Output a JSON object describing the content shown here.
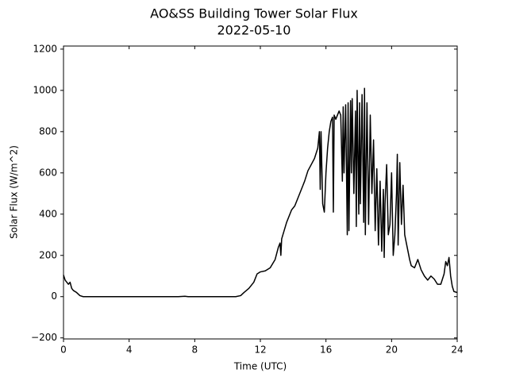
{
  "chart_data": {
    "type": "line",
    "title": "AO&SS Building Tower Solar Flux",
    "subtitle": "2022-05-10",
    "x_label": "Time (UTC)",
    "y_label": "Solar Flux (W/m^2)",
    "xlim": [
      0,
      24
    ],
    "ylim": [
      -205,
      1215
    ],
    "xticks": [
      0,
      4,
      8,
      12,
      16,
      20,
      24
    ],
    "yticks": [
      {
        "value": -200,
        "label": "−200"
      },
      0,
      200,
      400,
      600,
      800,
      1000,
      1200
    ],
    "grid": false,
    "series": [
      {
        "name": "Solar Flux",
        "color": "#000000",
        "x": [
          0,
          0.1,
          0.2,
          0.3,
          0.4,
          0.5,
          0.6,
          0.8,
          1.0,
          1.2,
          1.5,
          3,
          5,
          7,
          7.4,
          7.6,
          9,
          10.5,
          10.8,
          11.0,
          11.3,
          11.6,
          11.8,
          12.0,
          12.3,
          12.6,
          12.9,
          13.1,
          13.2,
          13.25,
          13.3,
          13.6,
          13.9,
          14.1,
          14.3,
          14.5,
          14.7,
          14.9,
          15.1,
          15.3,
          15.5,
          15.6,
          15.65,
          15.7,
          15.8,
          15.9,
          16.0,
          16.1,
          16.2,
          16.3,
          16.4,
          16.45,
          16.5,
          16.6,
          16.7,
          16.8,
          16.9,
          17.0,
          17.05,
          17.1,
          17.2,
          17.3,
          17.35,
          17.4,
          17.5,
          17.55,
          17.6,
          17.7,
          17.8,
          17.85,
          17.9,
          18.0,
          18.05,
          18.1,
          18.2,
          18.3,
          18.35,
          18.4,
          18.5,
          18.6,
          18.7,
          18.8,
          18.9,
          19.0,
          19.1,
          19.2,
          19.3,
          19.4,
          19.5,
          19.55,
          19.6,
          19.7,
          19.8,
          19.9,
          20.0,
          20.1,
          20.2,
          20.3,
          20.35,
          20.4,
          20.5,
          20.6,
          20.7,
          20.8,
          20.9,
          21.0,
          21.1,
          21.2,
          21.4,
          21.6,
          21.8,
          22.0,
          22.2,
          22.4,
          22.6,
          22.8,
          23.0,
          23.2,
          23.3,
          23.4,
          23.5,
          23.6,
          23.7,
          23.8,
          24.0
        ],
        "values": [
          105,
          80,
          70,
          60,
          70,
          40,
          30,
          20,
          5,
          0,
          0,
          0,
          0,
          0,
          2,
          0,
          0,
          0,
          5,
          20,
          40,
          70,
          110,
          120,
          125,
          140,
          180,
          240,
          260,
          200,
          280,
          360,
          420,
          440,
          480,
          520,
          560,
          610,
          640,
          670,
          720,
          800,
          520,
          800,
          450,
          410,
          600,
          720,
          800,
          850,
          870,
          410,
          880,
          860,
          880,
          900,
          880,
          560,
          920,
          600,
          930,
          300,
          940,
          320,
          950,
          600,
          960,
          500,
          900,
          340,
          1000,
          400,
          940,
          450,
          980,
          360,
          1010,
          300,
          940,
          350,
          880,
          500,
          760,
          320,
          620,
          250,
          560,
          220,
          520,
          190,
          450,
          640,
          300,
          350,
          600,
          200,
          300,
          500,
          690,
          250,
          650,
          350,
          540,
          300,
          260,
          220,
          180,
          150,
          140,
          180,
          130,
          100,
          80,
          100,
          85,
          60,
          60,
          110,
          170,
          150,
          190,
          100,
          50,
          25,
          20
        ]
      }
    ]
  }
}
